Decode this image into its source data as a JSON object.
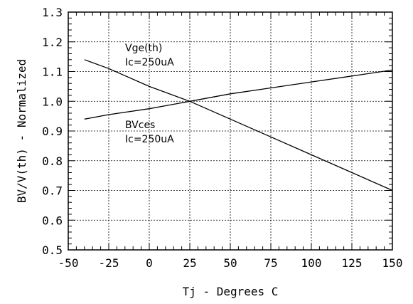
{
  "chart_data": {
    "type": "line",
    "xlabel": "Tj - Degrees C",
    "ylabel": "BV/V(th) - Normalized",
    "xlim": [
      -50,
      150
    ],
    "ylim": [
      0.5,
      1.3
    ],
    "grid": true,
    "x_ticks": [
      -50,
      -25,
      0,
      25,
      50,
      75,
      100,
      125,
      150
    ],
    "x_tick_labels": [
      "-50",
      "-25",
      "0",
      "25",
      "50",
      "75",
      "100",
      "125",
      "150"
    ],
    "y_ticks": [
      0.5,
      0.6,
      0.7,
      0.8,
      0.9,
      1.0,
      1.1,
      1.2,
      1.3
    ],
    "y_tick_labels": [
      "0.5",
      "0.6",
      "0.7",
      "0.8",
      "0.9",
      "1.0",
      "1.1",
      "1.2",
      "1.3"
    ],
    "series": [
      {
        "label_lines": [
          "Vge(th)",
          "Ic=250uA"
        ],
        "x": [
          -40,
          -25,
          0,
          25,
          50,
          75,
          100,
          125,
          150
        ],
        "y": [
          1.14,
          1.11,
          1.05,
          1.0,
          0.94,
          0.88,
          0.82,
          0.76,
          0.7
        ]
      },
      {
        "label_lines": [
          "BVces",
          "Ic=250uA"
        ],
        "x": [
          -40,
          -25,
          0,
          25,
          50,
          75,
          100,
          125,
          150
        ],
        "y": [
          0.94,
          0.955,
          0.975,
          1.0,
          1.025,
          1.045,
          1.065,
          1.085,
          1.105
        ]
      }
    ]
  }
}
